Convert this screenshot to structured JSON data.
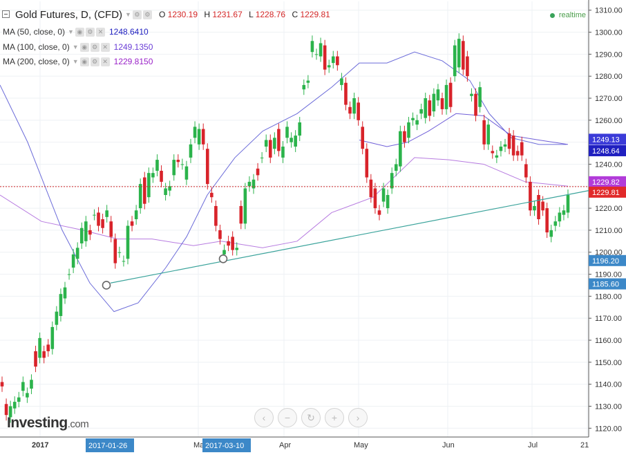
{
  "header": {
    "symbol": "Gold Futures, D, (CFD)",
    "o_label": "O",
    "o": "1230.19",
    "h_label": "H",
    "h": "1231.67",
    "l_label": "L",
    "l": "1228.76",
    "c_label": "C",
    "c": "1229.81",
    "realtime": "realtime"
  },
  "indicators": [
    {
      "label": "MA (50, close, 0)",
      "value": "1248.6410",
      "color": "#2020c0"
    },
    {
      "label": "MA (100, close, 0)",
      "value": "1249.1350",
      "color": "#6a3dd6"
    },
    {
      "label": "MA (200, close, 0)",
      "value": "1229.8150",
      "color": "#9a22c8"
    }
  ],
  "logo": {
    "main": "Investing",
    "suffix": ".com"
  },
  "nav": {
    "icons": [
      "chevron-left-icon",
      "zoom-out-icon",
      "reset-icon",
      "zoom-in-icon",
      "chevron-right-icon"
    ],
    "glyphs": [
      "‹",
      "−",
      "↻",
      "+",
      "›"
    ]
  },
  "colors": {
    "up": "#2bb34b",
    "down": "#d8232a",
    "ma50": "#6b6bd9",
    "ma100": "#6f5ed8",
    "ma200": "#b77be0",
    "trend": "#3aa39b"
  },
  "chart_data": {
    "type": "candlestick",
    "ylim": [
      1116,
      1314
    ],
    "yticks": [
      1120,
      1130,
      1140,
      1150,
      1160,
      1170,
      1180,
      1190,
      1200,
      1210,
      1220,
      1230,
      1240,
      1250,
      1260,
      1270,
      1280,
      1290,
      1300,
      1310
    ],
    "x_labels": [
      "2017",
      "Ma",
      "Apr",
      "May",
      "Jun",
      "Jul",
      "21"
    ],
    "highlight_dates": [
      "2017-01-26",
      "2017-03-10"
    ],
    "price_badges": [
      {
        "value": "1249.13",
        "color": "#3b3bd8"
      },
      {
        "value": "1248.64",
        "color": "#2020c0"
      },
      {
        "value": "1229.82",
        "color": "#b23cd9"
      },
      {
        "value": "1229.81",
        "color": "#e12a2a"
      },
      {
        "value": "1196.20",
        "color": "#3c88c8"
      },
      {
        "value": "1185.60",
        "color": "#3c88c8"
      }
    ],
    "candles": [
      [
        1141,
        1139
      ],
      [
        1131,
        1126
      ],
      [
        1125,
        1130
      ],
      [
        1129,
        1132
      ],
      [
        1132,
        1134
      ],
      [
        1137,
        1141
      ],
      [
        1134,
        1136
      ],
      [
        1138,
        1142
      ],
      [
        1155,
        1148
      ],
      [
        1152,
        1161
      ],
      [
        1155,
        1152
      ],
      [
        1158,
        1155
      ],
      [
        1156,
        1166
      ],
      [
        1167,
        1173
      ],
      [
        1171,
        1181
      ],
      [
        1179,
        1184
      ],
      [
        1190,
        1190
      ],
      [
        1193,
        1199
      ],
      [
        1197,
        1202
      ],
      [
        1204,
        1211
      ],
      [
        1205,
        1214
      ],
      [
        1210,
        1208
      ],
      [
        1217,
        1217
      ],
      [
        1218,
        1212
      ],
      [
        1215,
        1211
      ],
      [
        1216,
        1219
      ],
      [
        1214,
        1207
      ],
      [
        1206,
        1195
      ],
      [
        1200,
        1200
      ],
      [
        1196,
        1196
      ],
      [
        1197,
        1212
      ],
      [
        1214,
        1212
      ],
      [
        1215,
        1219
      ],
      [
        1220,
        1231
      ],
      [
        1234,
        1222
      ],
      [
        1225,
        1236
      ],
      [
        1234,
        1236
      ],
      [
        1237,
        1242
      ],
      [
        1237,
        1232
      ],
      [
        1226,
        1229
      ],
      [
        1228,
        1230
      ],
      [
        1235,
        1242
      ],
      [
        1242,
        1241
      ],
      [
        1240,
        1240
      ],
      [
        1233,
        1239
      ],
      [
        1243,
        1249
      ],
      [
        1252,
        1257
      ],
      [
        1249,
        1256
      ],
      [
        1256,
        1249
      ],
      [
        1247,
        1231
      ],
      [
        1227,
        1225
      ],
      [
        1221,
        1212
      ],
      [
        1210,
        1206
      ],
      [
        1199,
        1201
      ],
      [
        1205,
        1203
      ],
      [
        1207,
        1201
      ],
      [
        1201,
        1202
      ],
      [
        1221,
        1213
      ],
      [
        1213,
        1229
      ],
      [
        1230,
        1232
      ],
      [
        1229,
        1233
      ],
      [
        1238,
        1235
      ],
      [
        1243,
        1243
      ],
      [
        1248,
        1251
      ],
      [
        1251,
        1243
      ],
      [
        1247,
        1252
      ],
      [
        1256,
        1246
      ],
      [
        1243,
        1248
      ],
      [
        1252,
        1257
      ],
      [
        1250,
        1252
      ],
      [
        1248,
        1253
      ],
      [
        1253,
        1259
      ],
      [
        1274,
        1276
      ],
      [
        1277,
        1278
      ],
      [
        1291,
        1296
      ],
      [
        1290,
        1290
      ],
      [
        1289,
        1295
      ],
      [
        1294,
        1283
      ],
      [
        1284,
        1285
      ],
      [
        1286,
        1289
      ],
      [
        1289,
        1285
      ],
      [
        1276,
        1279
      ],
      [
        1277,
        1267
      ],
      [
        1266,
        1263
      ],
      [
        1263,
        1270
      ],
      [
        1268,
        1260
      ],
      [
        1257,
        1247
      ],
      [
        1247,
        1234
      ],
      [
        1233,
        1225
      ],
      [
        1229,
        1220
      ],
      [
        1219,
        1217
      ],
      [
        1223,
        1229
      ],
      [
        1220,
        1226
      ],
      [
        1229,
        1236
      ],
      [
        1237,
        1240
      ],
      [
        1239,
        1255
      ],
      [
        1255,
        1250
      ],
      [
        1252,
        1259
      ],
      [
        1260,
        1261
      ],
      [
        1258,
        1260
      ],
      [
        1263,
        1265
      ],
      [
        1261,
        1270
      ],
      [
        1269,
        1262
      ],
      [
        1264,
        1272
      ],
      [
        1269,
        1274
      ],
      [
        1270,
        1265
      ],
      [
        1265,
        1276
      ],
      [
        1277,
        1266
      ],
      [
        1280,
        1294
      ],
      [
        1284,
        1297
      ],
      [
        1296,
        1283
      ],
      [
        1289,
        1280
      ],
      [
        1271,
        1272
      ],
      [
        1272,
        1262
      ],
      [
        1266,
        1275
      ],
      [
        1260,
        1249
      ],
      [
        1249,
        1258
      ],
      [
        1246,
        1245
      ],
      [
        1243,
        1244
      ],
      [
        1246,
        1248
      ],
      [
        1248,
        1249
      ],
      [
        1254,
        1247
      ],
      [
        1253,
        1244
      ],
      [
        1246,
        1244
      ],
      [
        1250,
        1244
      ],
      [
        1240,
        1234
      ],
      [
        1232,
        1219
      ],
      [
        1219,
        1221
      ],
      [
        1226,
        1215
      ],
      [
        1223,
        1219
      ],
      [
        1220,
        1209
      ],
      [
        1207,
        1210
      ],
      [
        1212,
        1214
      ],
      [
        1214,
        1218
      ],
      [
        1217,
        1219
      ],
      [
        1218,
        1226
      ]
    ],
    "ma50": [
      [
        0,
        1276
      ],
      [
        40,
        1250
      ],
      [
        90,
        1210
      ],
      [
        130,
        1186
      ],
      [
        165,
        1173
      ],
      [
        200,
        1177
      ],
      [
        240,
        1193
      ],
      [
        270,
        1207
      ],
      [
        300,
        1226
      ],
      [
        340,
        1243
      ],
      [
        380,
        1255
      ],
      [
        430,
        1263
      ],
      [
        480,
        1275
      ],
      [
        520,
        1286
      ],
      [
        560,
        1286
      ],
      [
        600,
        1291
      ],
      [
        640,
        1287
      ],
      [
        680,
        1278
      ],
      [
        708,
        1263
      ],
      [
        740,
        1252
      ],
      [
        780,
        1249
      ],
      [
        820,
        1249
      ]
    ],
    "ma100": [
      [
        520,
        1251
      ],
      [
        560,
        1248
      ],
      [
        590,
        1250
      ],
      [
        620,
        1255
      ],
      [
        660,
        1263
      ],
      [
        700,
        1262
      ],
      [
        740,
        1253
      ],
      [
        780,
        1251
      ],
      [
        822,
        1249
      ]
    ],
    "ma200": [
      [
        0,
        1226
      ],
      [
        60,
        1214
      ],
      [
        120,
        1210
      ],
      [
        170,
        1206
      ],
      [
        220,
        1206
      ],
      [
        280,
        1203
      ],
      [
        320,
        1205
      ],
      [
        380,
        1202
      ],
      [
        430,
        1205
      ],
      [
        480,
        1218
      ],
      [
        540,
        1225
      ],
      [
        600,
        1243
      ],
      [
        650,
        1242
      ],
      [
        700,
        1240
      ],
      [
        760,
        1232
      ],
      [
        822,
        1230
      ]
    ],
    "trendline": {
      "from": [
        160,
        1186
      ],
      "to": [
        852,
        1228
      ]
    },
    "circles": [
      [
        154,
        1185
      ],
      [
        323,
        1197
      ]
    ]
  }
}
